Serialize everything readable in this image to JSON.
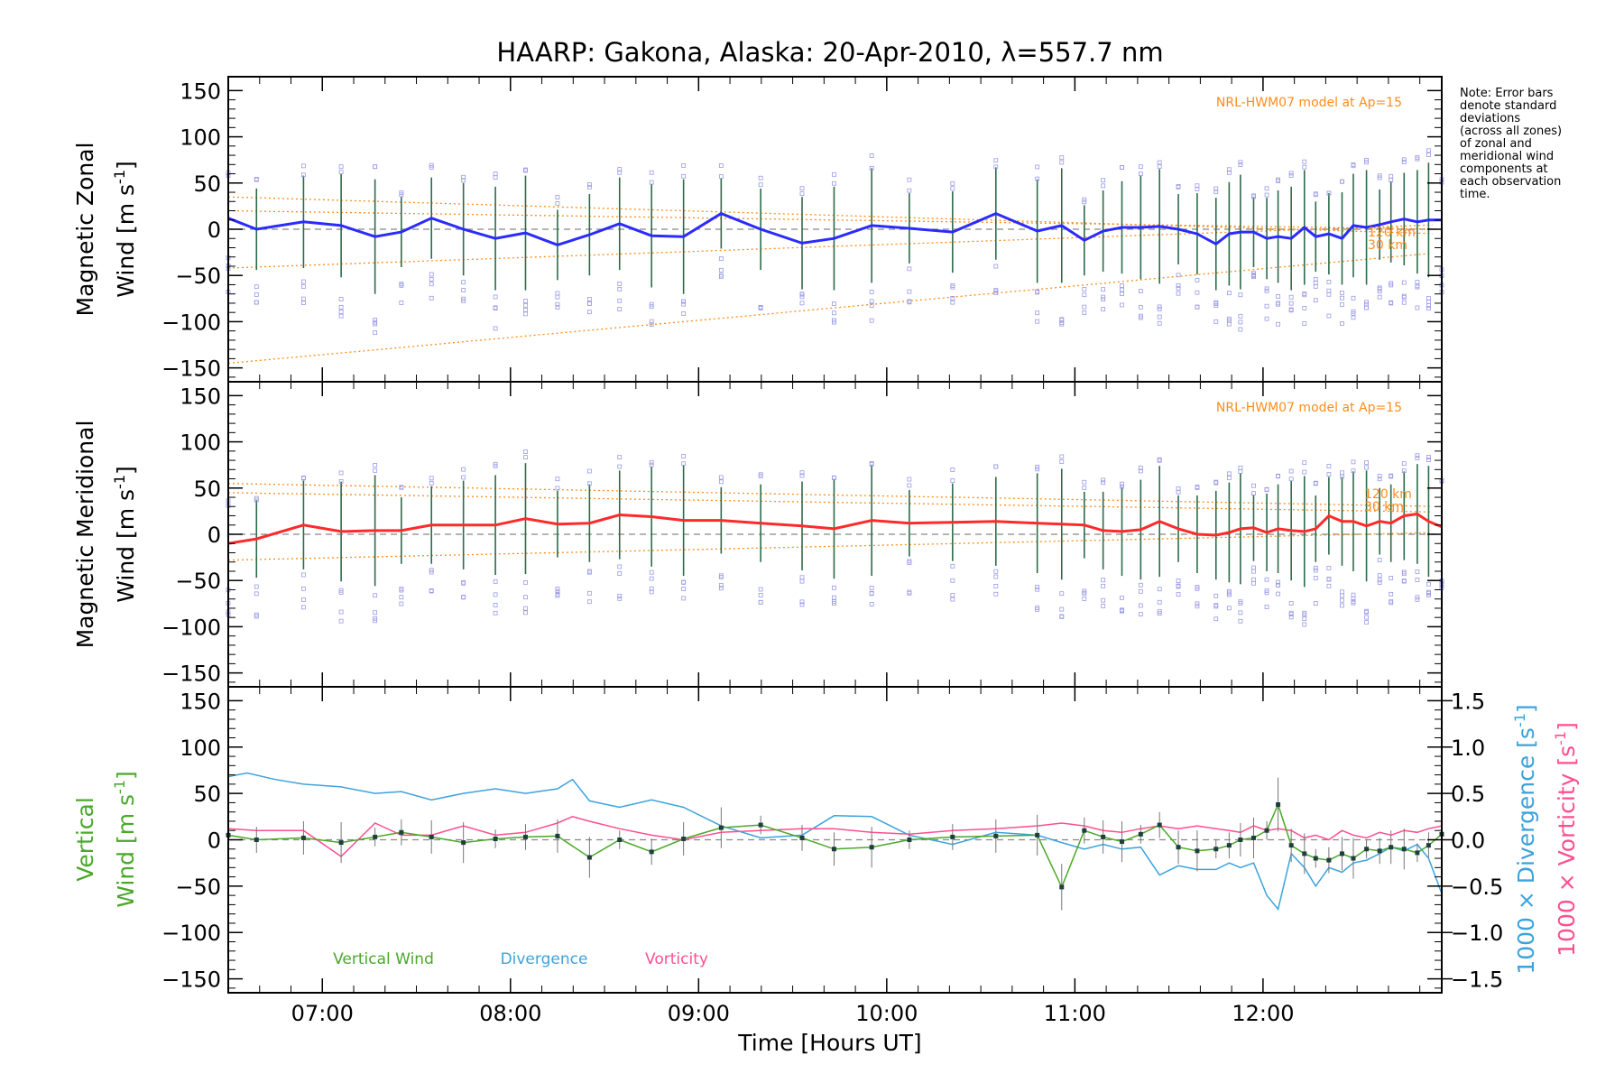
{
  "title": "HAARP: Gakona,  Alaska: 20-Apr-2010, λ=557.7 nm",
  "note_lines": [
    "Note: Error bars",
    "denote standard",
    "deviations",
    "(across all zones)",
    "of zonal and",
    "meridional wind",
    "components at",
    "each observation",
    "time."
  ],
  "xlabel": "Time [Hours UT]",
  "xticks": [
    "07:00",
    "08:00",
    "09:00",
    "10:00",
    "11:00",
    "12:00"
  ],
  "xlim": [
    6.5,
    12.95
  ],
  "colors": {
    "zonal": "#2b2bff",
    "meridional": "#ff2a2a",
    "vertical": "#4aa82a",
    "divergence": "#3ba3dc",
    "vorticity": "#ff4f8f",
    "model": "#ff8c1a",
    "scatter": "#9a9ae6",
    "zero": "#888888"
  },
  "panels": {
    "zonal": {
      "ylabel_line1": "Magnetic Zonal",
      "ylabel_line2": "Wind [m s",
      "ylabel_sup": "-1",
      "ylabel_close": "]",
      "model_label": "NRL-HWM07 model at Ap=15",
      "alt_labels": [
        "120 km",
        "30 km"
      ],
      "yticks": [
        "150",
        "100",
        "50",
        "0",
        "−50",
        "−100",
        "−150"
      ]
    },
    "meridional": {
      "ylabel_line1": "Magnetic Meridional",
      "ylabel_line2": "Wind [m s",
      "ylabel_sup": "-1",
      "ylabel_close": "]",
      "model_label": "NRL-HWM07 model at Ap=15",
      "alt_labels": [
        "120 km",
        "30 km"
      ],
      "yticks": [
        "150",
        "100",
        "50",
        "0",
        "−50",
        "−100",
        "−150"
      ]
    },
    "vertical": {
      "ylabel_line1": "Vertical",
      "ylabel_line2": "Wind [m s",
      "ylabel_sup": "-1",
      "ylabel_close": "]",
      "right_label1_pre": "1000 × Divergence [s",
      "right_label1_sup": "-1",
      "right_label1_close": "]",
      "right_label2_pre": "1000 × Vorticity [s",
      "right_label2_sup": "-1",
      "right_label2_close": "]",
      "yticks": [
        "150",
        "100",
        "50",
        "0",
        "−50",
        "−100",
        "−150"
      ],
      "yticks_right": [
        "1.5",
        "1.0",
        "0.5",
        "0.0",
        "−0.5",
        "−1.0",
        "−1.5"
      ],
      "legend": [
        "Vertical Wind",
        "Divergence",
        "Vorticity"
      ]
    }
  },
  "chart_data": [
    {
      "type": "line",
      "title": "HAARP: Gakona,  Alaska: 20-Apr-2010, λ=557.7 nm",
      "ylabel": "Magnetic Zonal Wind [m s-1]",
      "ylim": [
        -165,
        165
      ],
      "xlim": [
        6.5,
        12.95
      ],
      "series": [
        {
          "values_x": [
            6.5,
            6.65,
            6.9,
            7.1,
            7.28,
            7.42,
            7.58,
            7.75,
            7.92,
            8.08,
            8.25,
            8.42,
            8.58,
            8.75,
            8.92,
            9.12,
            9.33,
            9.55,
            9.72,
            9.92,
            10.12,
            10.35,
            10.58,
            10.8,
            10.93,
            11.05,
            11.15,
            11.25,
            11.35,
            11.45,
            11.55,
            11.65,
            11.75,
            11.82,
            11.88,
            11.95,
            12.02,
            12.08,
            12.15,
            12.22,
            12.28,
            12.35,
            12.42,
            12.48,
            12.55,
            12.62,
            12.68,
            12.75,
            12.82,
            12.88,
            12.95
          ],
          "values": [
            12,
            0,
            8,
            4,
            -8,
            -3,
            12,
            0,
            -10,
            -4,
            -17,
            -6,
            6,
            -7,
            -8,
            17,
            0,
            -15,
            -10,
            4,
            1,
            -3,
            17,
            -2,
            4,
            -12,
            -2,
            2,
            2,
            3,
            0,
            -5,
            -16,
            -5,
            -3,
            -3,
            -10,
            -8,
            -10,
            2,
            -8,
            -5,
            -10,
            4,
            2,
            5,
            8,
            11,
            8,
            10,
            10
          ]
        }
      ]
    },
    {
      "type": "line",
      "ylabel": "Magnetic Meridional Wind [m s-1]",
      "ylim": [
        -165,
        165
      ],
      "xlim": [
        6.5,
        12.95
      ],
      "series": [
        {
          "values_x": [
            6.5,
            6.65,
            6.9,
            7.1,
            7.28,
            7.42,
            7.58,
            7.75,
            7.92,
            8.08,
            8.25,
            8.42,
            8.58,
            8.75,
            8.92,
            9.12,
            9.33,
            9.55,
            9.72,
            9.92,
            10.12,
            10.35,
            10.58,
            10.8,
            10.93,
            11.05,
            11.15,
            11.25,
            11.35,
            11.45,
            11.55,
            11.65,
            11.75,
            11.82,
            11.88,
            11.95,
            12.02,
            12.08,
            12.15,
            12.22,
            12.28,
            12.35,
            12.42,
            12.48,
            12.55,
            12.62,
            12.68,
            12.75,
            12.82,
            12.88,
            12.95
          ],
          "values": [
            -10,
            -5,
            10,
            3,
            4,
            4,
            10,
            10,
            10,
            17,
            11,
            12,
            21,
            19,
            15,
            15,
            12,
            9,
            6,
            15,
            12,
            13,
            14,
            12,
            11,
            10,
            4,
            3,
            5,
            14,
            6,
            0,
            -1,
            2,
            6,
            7,
            2,
            6,
            4,
            3,
            6,
            20,
            14,
            14,
            9,
            14,
            12,
            20,
            22,
            14,
            8
          ]
        }
      ]
    },
    {
      "type": "line",
      "ylabel": "Vertical Wind [m s-1]",
      "ylim": [
        -165,
        165
      ],
      "y2lim": [
        -1.65,
        1.65
      ],
      "xlim": [
        6.5,
        12.95
      ],
      "series": [
        {
          "name": "Vertical Wind",
          "axis": "left",
          "values_x": [
            6.5,
            6.65,
            6.9,
            7.1,
            7.28,
            7.42,
            7.58,
            7.75,
            7.92,
            8.08,
            8.25,
            8.42,
            8.58,
            8.75,
            8.92,
            9.12,
            9.33,
            9.55,
            9.72,
            9.92,
            10.12,
            10.35,
            10.58,
            10.8,
            10.93,
            11.05,
            11.15,
            11.25,
            11.35,
            11.45,
            11.55,
            11.65,
            11.75,
            11.82,
            11.88,
            11.95,
            12.02,
            12.08,
            12.15,
            12.22,
            12.28,
            12.35,
            12.42,
            12.48,
            12.55,
            12.62,
            12.68,
            12.75,
            12.82,
            12.88,
            12.95
          ],
          "values": [
            5,
            0,
            2,
            -3,
            3,
            8,
            3,
            -3,
            1,
            3,
            4,
            -19,
            0,
            -13,
            1,
            13,
            16,
            2,
            -10,
            -8,
            0,
            3,
            4,
            5,
            -51,
            10,
            3,
            -2,
            6,
            16,
            -8,
            -12,
            -10,
            -6,
            0,
            2,
            10,
            38,
            -6,
            -15,
            -20,
            -22,
            -15,
            -20,
            -10,
            -12,
            -8,
            -10,
            -14,
            -6,
            6
          ]
        },
        {
          "name": "Divergence",
          "axis": "right",
          "values_x": [
            6.5,
            6.6,
            6.75,
            6.9,
            7.1,
            7.28,
            7.42,
            7.58,
            7.75,
            7.92,
            8.08,
            8.25,
            8.33,
            8.42,
            8.58,
            8.75,
            8.92,
            9.12,
            9.33,
            9.55,
            9.72,
            9.92,
            10.12,
            10.35,
            10.58,
            10.8,
            10.93,
            11.05,
            11.15,
            11.25,
            11.35,
            11.45,
            11.55,
            11.65,
            11.75,
            11.82,
            11.88,
            11.95,
            12.02,
            12.08,
            12.15,
            12.22,
            12.28,
            12.35,
            12.42,
            12.48,
            12.55,
            12.62,
            12.68,
            12.75,
            12.82,
            12.88,
            12.95
          ],
          "values": [
            0.68,
            0.72,
            0.65,
            0.6,
            0.57,
            0.5,
            0.52,
            0.43,
            0.5,
            0.55,
            0.5,
            0.55,
            0.65,
            0.42,
            0.35,
            0.43,
            0.35,
            0.15,
            0.02,
            0.05,
            0.26,
            0.25,
            0.05,
            -0.05,
            0.08,
            0.05,
            -0.03,
            -0.1,
            -0.05,
            -0.1,
            -0.08,
            -0.38,
            -0.28,
            -0.32,
            -0.32,
            -0.25,
            -0.3,
            -0.25,
            -0.6,
            -0.75,
            -0.15,
            -0.3,
            -0.5,
            -0.3,
            -0.35,
            -0.25,
            -0.22,
            -0.15,
            -0.08,
            -0.12,
            -0.05,
            -0.2,
            -0.58
          ]
        },
        {
          "name": "Vorticity",
          "axis": "right",
          "values_x": [
            6.5,
            6.65,
            6.9,
            7.1,
            7.28,
            7.42,
            7.58,
            7.75,
            7.92,
            8.08,
            8.25,
            8.33,
            8.42,
            8.58,
            8.75,
            8.92,
            9.12,
            9.33,
            9.55,
            9.72,
            9.92,
            10.12,
            10.35,
            10.58,
            10.8,
            10.93,
            11.05,
            11.15,
            11.25,
            11.35,
            11.45,
            11.55,
            11.65,
            11.75,
            11.82,
            11.88,
            11.95,
            12.02,
            12.08,
            12.15,
            12.22,
            12.28,
            12.35,
            12.42,
            12.48,
            12.55,
            12.62,
            12.68,
            12.75,
            12.82,
            12.88,
            12.95
          ],
          "values": [
            0.12,
            0.1,
            0.1,
            -0.18,
            0.18,
            0.05,
            0.05,
            0.15,
            0.05,
            0.08,
            0.18,
            0.25,
            0.2,
            0.12,
            0.05,
            0.0,
            0.08,
            0.1,
            0.12,
            0.12,
            0.08,
            0.06,
            0.1,
            0.12,
            0.15,
            0.18,
            0.15,
            0.1,
            0.08,
            0.12,
            0.15,
            0.12,
            0.15,
            0.12,
            0.1,
            0.08,
            0.15,
            0.1,
            0.12,
            0.1,
            0.02,
            0.05,
            0.0,
            0.1,
            0.05,
            0.02,
            0.08,
            0.05,
            0.1,
            0.08,
            0.12,
            0.15
          ]
        }
      ]
    }
  ]
}
